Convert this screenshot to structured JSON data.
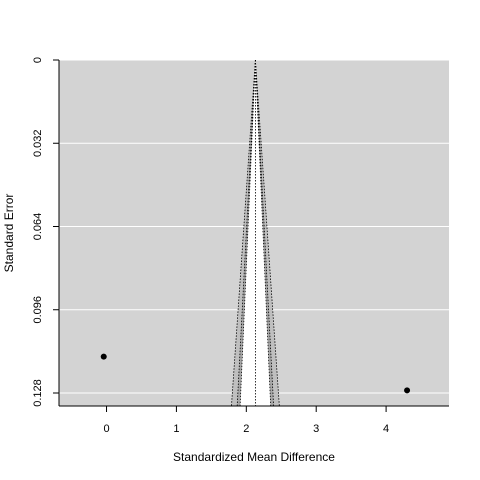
{
  "chart_data": {
    "type": "scatter",
    "subtype": "funnel",
    "title": "",
    "xlabel": "Standardized Mean Difference",
    "ylabel": "Standard Error",
    "xlim": [
      -0.68,
      4.9
    ],
    "ylim": [
      0.133,
      0
    ],
    "y_inverted": true,
    "x_ticks": [
      "0",
      "1",
      "2",
      "3",
      "4"
    ],
    "y_ticks": [
      "0",
      "0.032",
      "0.064",
      "0.096",
      "0.128"
    ],
    "x_tick_values": [
      0,
      1,
      2,
      3,
      4
    ],
    "y_tick_values": [
      0,
      0.032,
      0.064,
      0.096,
      0.128
    ],
    "center_estimate": 2.13,
    "funnel_z": [
      1.645,
      1.96,
      2.576
    ],
    "funnel_fills": [
      "#ffffff",
      "#a6a6a6",
      "#bfbfbf"
    ],
    "points": [
      {
        "x": -0.04,
        "y": 0.114
      },
      {
        "x": 4.3,
        "y": 0.127
      }
    ],
    "background": "#d3d3d3",
    "grid": true,
    "grid_color": "#ffffff",
    "legend": "none"
  }
}
